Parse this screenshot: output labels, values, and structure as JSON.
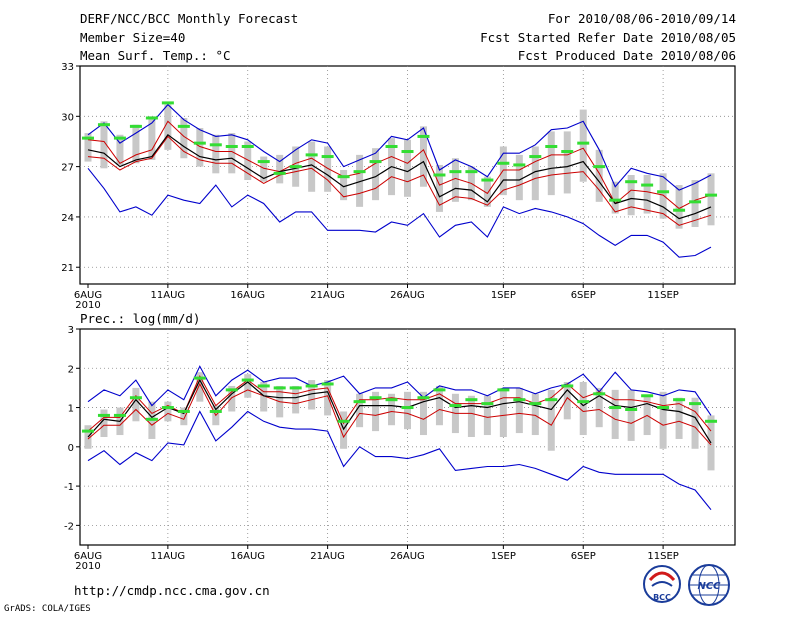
{
  "header": {
    "title": "DERF/NCC/BCC Monthly Forecast",
    "member_size": "Member Size=40",
    "variable": "Mean Surf. Temp.: °C",
    "period": "For 2010/08/06-2010/09/14",
    "fcst_started": "Fcst Started Refer Date 2010/08/05",
    "fcst_produced": "Fcst Produced Date 2010/08/06"
  },
  "footer": {
    "url": "http://cmdp.ncc.cma.gov.cn",
    "grads": "GrADS: COLA/IGES",
    "logo_bcc": "BCC",
    "logo_ncc": "NCC"
  },
  "colors": {
    "mean": "#000000",
    "spread_upper": "#cc0000",
    "spread_lower": "#cc0000",
    "max": "#0000cc",
    "min": "#0000cc",
    "obs": "#33dd33",
    "box": "#c8c8c8"
  },
  "chart_data": [
    {
      "type": "line",
      "title": "Mean Surf. Temp.: °C",
      "ylim": [
        20,
        33
      ],
      "yticks": [
        "21",
        "24",
        "27",
        "30",
        "33"
      ],
      "xticks": [
        "6AUG",
        "11AUG",
        "16AUG",
        "21AUG",
        "26AUG",
        "1SEP",
        "6SEP",
        "11SEP"
      ],
      "year_label": "2010",
      "x": [
        1,
        2,
        3,
        4,
        5,
        6,
        7,
        8,
        9,
        10,
        11,
        12,
        13,
        14,
        15,
        16,
        17,
        18,
        19,
        20,
        21,
        22,
        23,
        24,
        25,
        26,
        27,
        28,
        29,
        30,
        31,
        32,
        33,
        34,
        35,
        36,
        37,
        38,
        39,
        40
      ],
      "series": [
        {
          "name": "max",
          "values": [
            28.9,
            29.6,
            28.4,
            29.0,
            29.6,
            30.7,
            29.8,
            29.2,
            28.8,
            28.9,
            28.6,
            27.9,
            27.3,
            28.0,
            28.6,
            28.4,
            27.0,
            27.4,
            27.8,
            28.8,
            28.6,
            29.3,
            26.8,
            27.4,
            27.0,
            26.4,
            27.8,
            27.8,
            28.3,
            29.2,
            29.3,
            29.7,
            28.0,
            25.8,
            26.9,
            26.6,
            26.4,
            25.6,
            26.0,
            26.5
          ]
        },
        {
          "name": "upper",
          "values": [
            28.6,
            28.5,
            27.2,
            27.7,
            28.0,
            29.7,
            28.8,
            28.2,
            27.9,
            27.9,
            27.4,
            26.9,
            26.7,
            27.2,
            27.5,
            26.9,
            26.4,
            26.6,
            27.2,
            27.6,
            27.2,
            28.0,
            25.9,
            26.3,
            26.0,
            25.4,
            26.8,
            26.8,
            27.3,
            27.7,
            27.7,
            28.1,
            26.6,
            24.8,
            25.6,
            25.5,
            25.3,
            24.5,
            25.0,
            25.3
          ]
        },
        {
          "name": "mean",
          "values": [
            28.0,
            27.8,
            27.0,
            27.4,
            27.6,
            28.9,
            28.2,
            27.6,
            27.4,
            27.5,
            26.9,
            26.3,
            26.7,
            26.9,
            27.1,
            26.5,
            25.8,
            26.1,
            26.4,
            27.0,
            26.7,
            27.3,
            25.2,
            25.7,
            25.6,
            24.9,
            26.2,
            26.2,
            26.7,
            26.9,
            27.0,
            27.3,
            26.1,
            24.8,
            25.1,
            25.0,
            24.6,
            23.9,
            24.2,
            24.6
          ]
        },
        {
          "name": "lower",
          "values": [
            27.6,
            27.5,
            26.8,
            27.3,
            27.5,
            28.8,
            27.9,
            27.4,
            27.2,
            27.2,
            26.6,
            26.0,
            26.5,
            26.7,
            26.9,
            26.2,
            25.2,
            25.4,
            25.7,
            26.4,
            26.1,
            26.5,
            24.7,
            25.2,
            25.1,
            24.7,
            25.6,
            25.9,
            26.3,
            26.5,
            26.6,
            26.7,
            25.6,
            24.3,
            24.6,
            24.4,
            24.2,
            23.5,
            23.8,
            24.1
          ]
        },
        {
          "name": "min",
          "values": [
            26.9,
            25.7,
            24.3,
            24.6,
            24.1,
            25.3,
            25.0,
            24.8,
            25.9,
            24.6,
            25.3,
            24.8,
            23.7,
            24.3,
            24.3,
            23.2,
            23.2,
            23.2,
            23.1,
            23.7,
            23.5,
            24.2,
            22.8,
            23.5,
            23.7,
            22.8,
            24.6,
            24.2,
            24.5,
            24.3,
            24.0,
            23.6,
            22.9,
            22.3,
            22.9,
            22.9,
            22.5,
            21.6,
            21.7,
            22.2
          ]
        },
        {
          "name": "box_top",
          "values": [
            29.0,
            29.7,
            28.9,
            29.5,
            30.0,
            30.7,
            29.9,
            29.3,
            28.9,
            29.0,
            28.5,
            27.6,
            27.7,
            28.2,
            28.5,
            28.2,
            26.8,
            27.7,
            28.1,
            28.7,
            28.6,
            29.4,
            27.1,
            27.5,
            27.0,
            26.4,
            28.2,
            27.7,
            28.2,
            29.1,
            29.1,
            30.4,
            28.0,
            26.1,
            26.5,
            26.5,
            26.6,
            25.9,
            26.2,
            26.6
          ]
        },
        {
          "name": "box_bottom",
          "values": [
            27.3,
            26.9,
            27.1,
            27.2,
            27.4,
            28.0,
            27.5,
            27.0,
            26.6,
            26.6,
            26.2,
            26.1,
            26.0,
            25.8,
            25.5,
            25.5,
            25.0,
            24.6,
            25.0,
            25.3,
            25.2,
            25.8,
            24.3,
            24.9,
            25.0,
            24.6,
            25.3,
            25.0,
            25.0,
            25.3,
            25.4,
            26.1,
            24.9,
            24.2,
            24.1,
            24.2,
            23.9,
            23.3,
            23.4,
            23.5
          ]
        },
        {
          "name": "obs",
          "values": [
            28.7,
            29.5,
            28.7,
            29.4,
            29.9,
            30.8,
            29.4,
            28.4,
            28.3,
            28.2,
            28.2,
            27.3,
            26.6,
            27.0,
            27.7,
            27.6,
            26.4,
            26.7,
            27.3,
            28.2,
            27.9,
            28.8,
            26.5,
            26.7,
            26.7,
            26.2,
            27.2,
            27.1,
            27.6,
            28.2,
            27.9,
            28.4,
            27.0,
            25.0,
            26.1,
            25.9,
            25.5,
            24.4,
            24.9,
            25.3
          ]
        }
      ]
    },
    {
      "type": "line",
      "title": "Prec.: log(mm/d)",
      "ylim": [
        -2.5,
        3
      ],
      "yticks": [
        "-2",
        "-1",
        "0",
        "1",
        "2",
        "3"
      ],
      "xticks": [
        "6AUG",
        "11AUG",
        "16AUG",
        "21AUG",
        "26AUG",
        "1SEP",
        "6SEP",
        "11SEP"
      ],
      "year_label": "2010",
      "x": [
        1,
        2,
        3,
        4,
        5,
        6,
        7,
        8,
        9,
        10,
        11,
        12,
        13,
        14,
        15,
        16,
        17,
        18,
        19,
        20,
        21,
        22,
        23,
        24,
        25,
        26,
        27,
        28,
        29,
        30,
        31,
        32,
        33,
        34,
        35,
        36,
        37,
        38,
        39,
        40
      ],
      "series": [
        {
          "name": "max",
          "values": [
            1.15,
            1.45,
            1.3,
            1.7,
            1.05,
            1.45,
            1.2,
            2.05,
            1.3,
            1.7,
            1.95,
            1.65,
            1.75,
            1.75,
            1.55,
            1.65,
            1.8,
            1.35,
            1.5,
            1.5,
            1.65,
            1.25,
            1.55,
            1.45,
            1.45,
            1.3,
            1.5,
            1.5,
            1.35,
            1.5,
            1.6,
            1.85,
            1.4,
            1.9,
            1.45,
            1.4,
            1.3,
            1.45,
            1.4,
            0.8
          ]
        },
        {
          "name": "upper",
          "values": [
            0.4,
            0.75,
            0.75,
            1.3,
            0.85,
            1.05,
            0.85,
            1.8,
            1.05,
            1.4,
            1.7,
            1.4,
            1.4,
            1.35,
            1.45,
            1.5,
            0.6,
            1.2,
            1.2,
            1.25,
            1.2,
            1.2,
            1.35,
            1.1,
            1.1,
            1.1,
            1.25,
            1.25,
            1.1,
            1.25,
            1.6,
            1.25,
            1.4,
            1.2,
            1.2,
            1.15,
            1.05,
            1.1,
            0.9,
            0.4
          ]
        },
        {
          "name": "mean",
          "values": [
            0.25,
            0.7,
            0.65,
            1.2,
            0.75,
            1.0,
            0.85,
            1.7,
            0.95,
            1.35,
            1.65,
            1.3,
            1.25,
            1.25,
            1.35,
            1.4,
            0.45,
            1.05,
            1.05,
            1.05,
            1.0,
            1.15,
            1.25,
            1.0,
            1.05,
            1.0,
            1.1,
            1.15,
            1.05,
            0.95,
            1.45,
            1.05,
            1.3,
            1.05,
            1.0,
            1.1,
            0.95,
            0.9,
            0.75,
            0.1
          ]
        },
        {
          "name": "lower",
          "values": [
            0.2,
            0.55,
            0.55,
            0.95,
            0.55,
            0.85,
            0.7,
            1.6,
            0.8,
            1.25,
            1.45,
            1.3,
            1.15,
            1.1,
            1.2,
            1.3,
            0.25,
            0.85,
            0.8,
            0.9,
            0.85,
            0.7,
            0.95,
            0.85,
            0.85,
            0.75,
            0.8,
            0.85,
            0.8,
            0.55,
            1.25,
            0.9,
            0.95,
            0.7,
            0.6,
            0.8,
            0.55,
            0.65,
            0.5,
            0.05
          ]
        },
        {
          "name": "min",
          "values": [
            -0.35,
            -0.1,
            -0.45,
            -0.15,
            -0.35,
            0.1,
            0.05,
            0.9,
            0.15,
            0.5,
            0.9,
            0.65,
            0.5,
            0.45,
            0.45,
            0.4,
            -0.5,
            0.0,
            -0.25,
            -0.25,
            -0.3,
            -0.2,
            -0.05,
            -0.6,
            -0.55,
            -0.5,
            -0.5,
            -0.45,
            -0.55,
            -0.7,
            -0.85,
            -0.5,
            -0.65,
            -0.7,
            -0.7,
            -0.7,
            -0.7,
            -0.95,
            -1.1,
            -1.6
          ]
        },
        {
          "name": "box_top",
          "values": [
            0.55,
            0.95,
            1.0,
            1.5,
            1.15,
            1.15,
            1.0,
            1.9,
            1.05,
            1.55,
            1.85,
            1.65,
            1.55,
            1.55,
            1.7,
            1.7,
            0.9,
            1.35,
            1.4,
            1.35,
            1.4,
            1.4,
            1.55,
            1.35,
            1.3,
            1.3,
            1.5,
            1.5,
            1.35,
            1.45,
            1.65,
            1.65,
            1.5,
            1.45,
            1.45,
            1.3,
            1.4,
            1.25,
            1.25,
            0.8
          ]
        },
        {
          "name": "box_bottom",
          "values": [
            -0.05,
            0.25,
            0.3,
            0.65,
            0.2,
            0.65,
            0.55,
            1.15,
            0.55,
            0.9,
            1.25,
            0.9,
            0.75,
            0.85,
            0.95,
            0.8,
            -0.05,
            0.5,
            0.4,
            0.55,
            0.45,
            0.3,
            0.55,
            0.35,
            0.25,
            0.3,
            0.25,
            0.35,
            0.3,
            -0.1,
            0.7,
            0.3,
            0.5,
            0.2,
            0.15,
            0.3,
            -0.05,
            0.2,
            -0.05,
            -0.6
          ]
        },
        {
          "name": "obs",
          "values": [
            0.4,
            0.8,
            0.8,
            1.25,
            0.7,
            1.0,
            0.9,
            1.75,
            0.9,
            1.45,
            1.7,
            1.55,
            1.5,
            1.5,
            1.55,
            1.6,
            0.65,
            1.15,
            1.25,
            1.2,
            1.0,
            1.25,
            1.45,
            1.05,
            1.2,
            1.1,
            1.45,
            1.2,
            1.1,
            1.2,
            1.55,
            1.15,
            1.35,
            1.0,
            0.95,
            1.3,
            1.0,
            1.2,
            1.1,
            0.65
          ]
        }
      ]
    }
  ]
}
